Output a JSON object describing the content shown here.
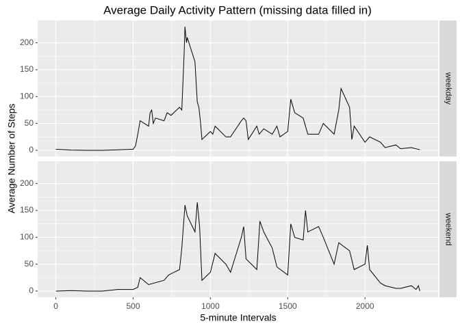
{
  "chart_data": {
    "type": "line",
    "title": "Average Daily Activity Pattern (missing data filled in)",
    "xlabel": "5-minute Intervals",
    "ylabel": "Average Number of Steps",
    "xlim": [
      -117.75,
      2472.75
    ],
    "xticks": [
      0,
      500,
      1000,
      1500,
      2000
    ],
    "ylim": [
      -11.5,
      241.5
    ],
    "yticks": [
      0,
      50,
      100,
      150,
      200
    ],
    "grid": true,
    "color": "#000000",
    "facets": [
      {
        "label": "weekday",
        "x": [
          0,
          100,
          200,
          300,
          400,
          500,
          515,
          530,
          545,
          600,
          610,
          620,
          630,
          645,
          700,
          720,
          745,
          800,
          815,
          830,
          835,
          845,
          850,
          900,
          915,
          925,
          935,
          945,
          1000,
          1015,
          1030,
          1100,
          1130,
          1200,
          1215,
          1230,
          1245,
          1300,
          1315,
          1345,
          1400,
          1430,
          1450,
          1500,
          1520,
          1545,
          1600,
          1630,
          1700,
          1730,
          1800,
          1830,
          1845,
          1900,
          1915,
          1930,
          2000,
          2030,
          2100,
          2130,
          2200,
          2230,
          2300,
          2355
        ],
        "values": [
          2,
          0.5,
          0,
          0,
          1,
          2,
          8,
          30,
          55,
          45,
          70,
          75,
          50,
          60,
          55,
          70,
          65,
          80,
          75,
          180,
          230,
          200,
          210,
          165,
          90,
          80,
          55,
          20,
          35,
          30,
          45,
          25,
          25,
          55,
          60,
          55,
          20,
          45,
          30,
          40,
          30,
          45,
          25,
          35,
          95,
          70,
          60,
          30,
          30,
          50,
          30,
          75,
          115,
          80,
          20,
          45,
          15,
          25,
          15,
          5,
          10,
          3,
          5,
          1
        ]
      },
      {
        "label": "weekend",
        "x": [
          0,
          100,
          200,
          300,
          400,
          500,
          530,
          545,
          600,
          700,
          730,
          800,
          815,
          835,
          850,
          900,
          915,
          930,
          945,
          1000,
          1030,
          1100,
          1130,
          1200,
          1215,
          1230,
          1300,
          1320,
          1345,
          1400,
          1430,
          1500,
          1520,
          1545,
          1600,
          1615,
          1630,
          1700,
          1730,
          1800,
          1830,
          1900,
          1930,
          2000,
          2015,
          2030,
          2100,
          2130,
          2200,
          2230,
          2300,
          2330,
          2345,
          2355
        ],
        "values": [
          0,
          1,
          0,
          0,
          3,
          3,
          7,
          25,
          12,
          20,
          30,
          40,
          80,
          160,
          140,
          110,
          165,
          120,
          20,
          35,
          70,
          50,
          35,
          100,
          120,
          60,
          40,
          130,
          110,
          80,
          45,
          30,
          125,
          100,
          95,
          150,
          110,
          120,
          100,
          50,
          90,
          75,
          40,
          50,
          85,
          40,
          15,
          10,
          5,
          5,
          10,
          3,
          10,
          0
        ]
      }
    ]
  }
}
